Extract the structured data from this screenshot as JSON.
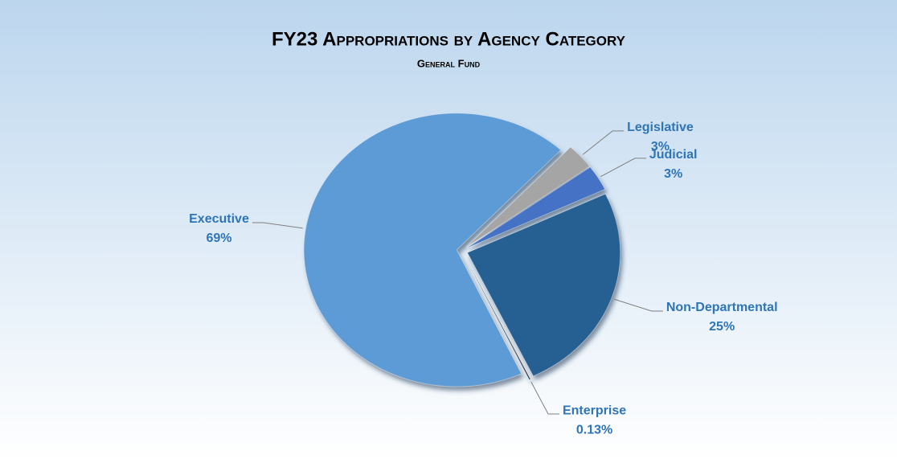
{
  "chart_data": {
    "type": "pie",
    "title": "FY23 Appropriations by Agency Category",
    "subtitle": "General Fund",
    "categories": [
      "Legislative",
      "Judicial",
      "Non-Departmental",
      "Enterprise",
      "Executive"
    ],
    "values": [
      3,
      3,
      25,
      0.13,
      69
    ],
    "value_labels": [
      "3%",
      "3%",
      "25%",
      "0.13%",
      "69%"
    ],
    "colors": [
      "#a5a5a5",
      "#4472c4",
      "#255e91",
      "#1b2a3e",
      "#5b9bd5"
    ]
  }
}
